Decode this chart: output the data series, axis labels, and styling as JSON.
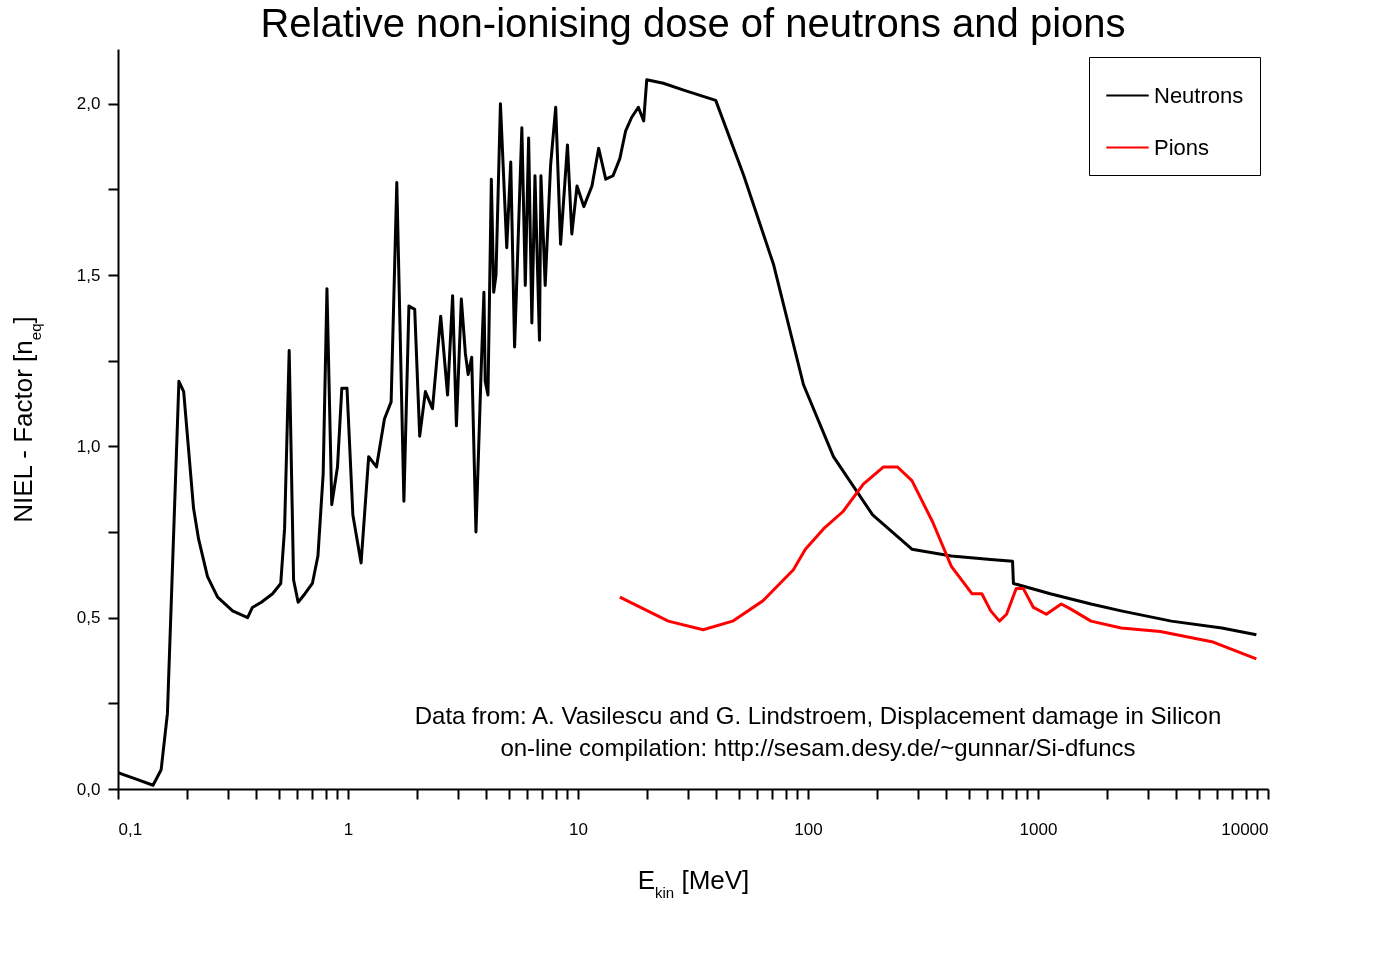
{
  "chart_data": {
    "type": "line",
    "title": "Relative non-ionising dose of neutrons and pions",
    "xlabel": "E$_{kin}$ [MeV]",
    "ylabel": "NIEL - Factor [n$_{eq}$]",
    "log": "x",
    "legend": "top right",
    "xlim": [
      0.1,
      10000
    ],
    "ylim": [
      0,
      2.16
    ],
    "xticks": [
      {
        "value": 0.1,
        "label": "0,1"
      },
      {
        "value": 0.2,
        "label": null
      },
      {
        "value": 0.3,
        "label": null
      },
      {
        "value": 0.4,
        "label": null
      },
      {
        "value": 0.5,
        "label": null
      },
      {
        "value": 0.6,
        "label": null
      },
      {
        "value": 0.7,
        "label": null
      },
      {
        "value": 0.8,
        "label": null
      },
      {
        "value": 0.9,
        "label": null
      },
      1,
      {
        "value": 2,
        "label": null
      },
      {
        "value": 3,
        "label": null
      },
      {
        "value": 4,
        "label": null
      },
      {
        "value": 5,
        "label": null
      },
      {
        "value": 6,
        "label": null
      },
      {
        "value": 7,
        "label": null
      },
      {
        "value": 8,
        "label": null
      },
      {
        "value": 9,
        "label": null
      },
      10,
      {
        "value": 20,
        "label": null
      },
      {
        "value": 30,
        "label": null
      },
      {
        "value": 40,
        "label": null
      },
      {
        "value": 50,
        "label": null
      },
      {
        "value": 60,
        "label": null
      },
      {
        "value": 70,
        "label": null
      },
      {
        "value": 80,
        "label": null
      },
      {
        "value": 90,
        "label": null
      },
      100,
      {
        "value": 200,
        "label": null
      },
      {
        "value": 300,
        "label": null
      },
      {
        "value": 400,
        "label": null
      },
      {
        "value": 500,
        "label": null
      },
      {
        "value": 600,
        "label": null
      },
      {
        "value": 700,
        "label": null
      },
      {
        "value": 800,
        "label": null
      },
      {
        "value": 900,
        "label": null
      },
      1000,
      {
        "value": 2000,
        "label": null
      },
      {
        "value": 3000,
        "label": null
      },
      {
        "value": 4000,
        "label": null
      },
      {
        "value": 5000,
        "label": null
      },
      {
        "value": 6000,
        "label": null
      },
      {
        "value": 7000,
        "label": null
      },
      {
        "value": 8000,
        "label": null
      },
      {
        "value": 9000,
        "label": null
      },
      10000
    ],
    "yticks": [
      {
        "value": 0,
        "label": "0,0"
      },
      {
        "value": 0.25,
        "label": null
      },
      {
        "value": 0.5,
        "label": "0,5"
      },
      {
        "value": 0.75,
        "label": null
      },
      {
        "value": 1,
        "label": "1,0"
      },
      {
        "value": 1.25,
        "label": null
      },
      {
        "value": 1.5,
        "label": "1,5"
      },
      {
        "value": 1.75,
        "label": null
      },
      {
        "value": 2,
        "label": "2,0"
      }
    ],
    "annotations": [
      "Data from: A. Vasilescu and G. Lindstroem, Displacement damage in Silicon",
      "on-line compilation: http://sesam.desy.de/~gunnar/Si-dfuncs"
    ],
    "series": [
      {
        "name": "Neutrons",
        "color": "#000000",
        "x": [
          0.1,
          0.12,
          0.142,
          0.154,
          0.164,
          0.184,
          0.193,
          0.213,
          0.224,
          0.245,
          0.271,
          0.315,
          0.366,
          0.384,
          0.42,
          0.47,
          0.51,
          0.53,
          0.555,
          0.58,
          0.607,
          0.65,
          0.7,
          0.74,
          0.78,
          0.81,
          0.85,
          0.9,
          0.94,
          0.99,
          1.05,
          1.14,
          1.23,
          1.33,
          1.44,
          1.54,
          1.63,
          1.75,
          1.84,
          1.95,
          2.05,
          2.17,
          2.33,
          2.53,
          2.71,
          2.85,
          2.96,
          3.11,
          3.24,
          3.33,
          3.45,
          3.6,
          3.8,
          3.9,
          3.95,
          4.06,
          4.2,
          4.3,
          4.4,
          4.6,
          4.9,
          5.1,
          5.3,
          5.7,
          5.9,
          6.1,
          6.3,
          6.5,
          6.8,
          6.9,
          7.2,
          7.6,
          8.0,
          8.4,
          9.0,
          9.4,
          9.9,
          10.6,
          11.5,
          12.3,
          13.2,
          14.2,
          15.2,
          16.1,
          17.1,
          18.3,
          19.3,
          19.9,
          23.5,
          28.8,
          39.7,
          52.6,
          70.9,
          95.6,
          129,
          191,
          283,
          420,
          623,
          775,
          782,
          1130,
          1700,
          2300,
          3800,
          6300,
          8900
        ],
        "values": [
          0.048,
          0.029,
          0.011,
          0.056,
          0.22,
          1.19,
          1.16,
          0.82,
          0.73,
          0.62,
          0.56,
          0.52,
          0.5,
          0.53,
          0.545,
          0.57,
          0.6,
          0.76,
          1.28,
          0.61,
          0.545,
          0.57,
          0.6,
          0.68,
          0.92,
          1.46,
          0.83,
          0.94,
          1.17,
          1.17,
          0.8,
          0.66,
          0.97,
          0.94,
          1.08,
          1.13,
          1.77,
          0.84,
          1.41,
          1.4,
          1.03,
          1.16,
          1.11,
          1.38,
          1.15,
          1.44,
          1.06,
          1.43,
          1.27,
          1.21,
          1.26,
          0.75,
          1.24,
          1.45,
          1.19,
          1.15,
          1.78,
          1.45,
          1.5,
          2.0,
          1.58,
          1.83,
          1.29,
          1.93,
          1.47,
          1.9,
          1.36,
          1.79,
          1.31,
          1.79,
          1.47,
          1.82,
          1.99,
          1.59,
          1.88,
          1.62,
          1.76,
          1.7,
          1.76,
          1.87,
          1.78,
          1.79,
          1.84,
          1.92,
          1.96,
          1.99,
          1.95,
          2.07,
          2.06,
          2.04,
          2.01,
          1.79,
          1.53,
          1.18,
          0.97,
          0.8,
          0.7,
          0.68,
          0.67,
          0.665,
          0.6,
          0.57,
          0.54,
          0.52,
          0.49,
          0.47,
          0.45
        ]
      },
      {
        "name": "Pions",
        "color": "#ff0000",
        "x": [
          15.2,
          24.7,
          35,
          47,
          63.9,
          86.4,
          97.4,
          117,
          142,
          174,
          213,
          245,
          283,
          348,
          420,
          516,
          570,
          623,
          680,
          730,
          804,
          864,
          955,
          1087,
          1262,
          1390,
          1700,
          2300,
          3400,
          5700,
          8900
        ],
        "values": [
          0.56,
          0.49,
          0.465,
          0.49,
          0.55,
          0.64,
          0.7,
          0.76,
          0.81,
          0.89,
          0.94,
          0.94,
          0.9,
          0.78,
          0.65,
          0.57,
          0.57,
          0.52,
          0.49,
          0.51,
          0.585,
          0.585,
          0.53,
          0.51,
          0.54,
          0.525,
          0.49,
          0.47,
          0.46,
          0.43,
          0.38
        ]
      }
    ]
  }
}
